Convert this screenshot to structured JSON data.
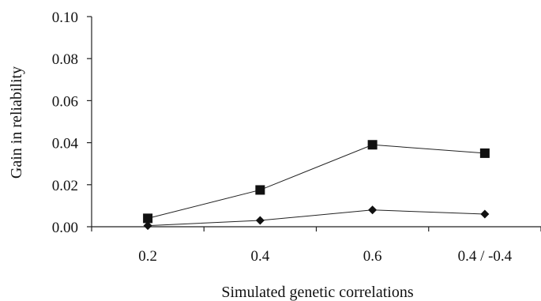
{
  "chart_data": {
    "type": "line",
    "title": "",
    "xlabel": "Simulated genetic correlations",
    "ylabel": "Gain in reliability",
    "categories": [
      "0.2",
      "0.4",
      "0.6",
      "0.4 / -0.4"
    ],
    "ylim": [
      0,
      0.1
    ],
    "yticks": [
      "0.00",
      "0.02",
      "0.04",
      "0.06",
      "0.08",
      "0.10"
    ],
    "grid": false,
    "series": [
      {
        "marker": "square",
        "color": "#111111",
        "values": [
          0.004,
          0.0175,
          0.039,
          0.035
        ]
      },
      {
        "marker": "diamond",
        "color": "#111111",
        "values": [
          0.0005,
          0.003,
          0.008,
          0.006
        ]
      }
    ]
  }
}
